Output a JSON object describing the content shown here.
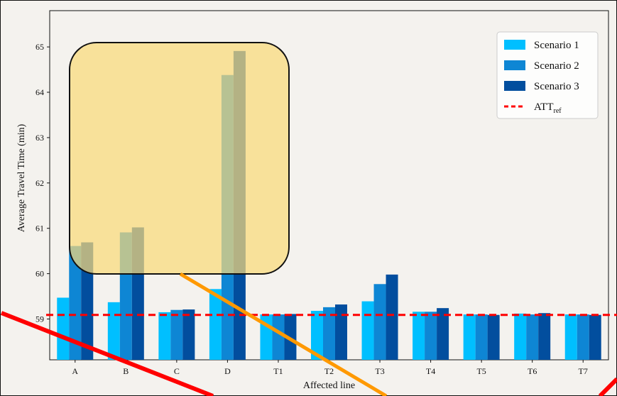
{
  "chart_data": {
    "type": "bar",
    "categories": [
      "A",
      "B",
      "C",
      "D",
      "T1",
      "T2",
      "T3",
      "T4",
      "T5",
      "T6",
      "T7"
    ],
    "series": [
      {
        "name": "Scenario 1",
        "color": "#00bfff",
        "values": [
          59.47,
          59.37,
          59.15,
          59.66,
          59.1,
          59.18,
          59.39,
          59.16,
          59.1,
          59.12,
          59.1
        ]
      },
      {
        "name": "Scenario 2",
        "color": "#0e86d4",
        "values": [
          60.61,
          60.91,
          59.2,
          64.38,
          59.1,
          59.26,
          59.77,
          59.16,
          59.1,
          59.1,
          59.1
        ]
      },
      {
        "name": "Scenario 3",
        "color": "#024e9e",
        "values": [
          60.69,
          61.02,
          59.21,
          64.91,
          59.11,
          59.32,
          59.98,
          59.24,
          59.09,
          59.13,
          59.09
        ]
      }
    ],
    "reference": {
      "label_main": "ATT",
      "label_sub": "ref",
      "value": 59.09,
      "color": "#ff0000"
    },
    "xlabel": "Affected line",
    "ylabel": "Average Travel Time (min)",
    "ylim": [
      58.1,
      65.8
    ],
    "yticks": [
      59,
      60,
      61,
      62,
      63,
      64,
      65
    ],
    "legend_position": "top-right",
    "grid": false
  },
  "annotations": {
    "highlight_color": "#fad97a",
    "red_line_color": "#ff0000",
    "orange_line_color": "#ff9900"
  }
}
